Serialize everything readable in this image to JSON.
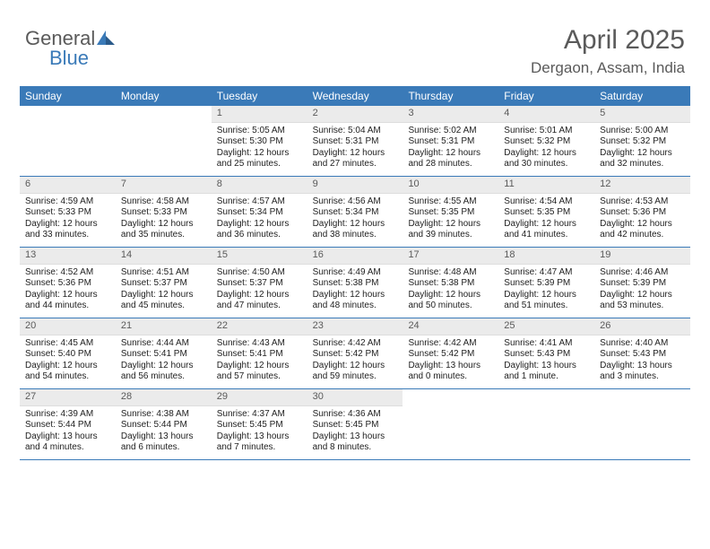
{
  "logo": {
    "text1": "General",
    "text2": "Blue"
  },
  "title": "April 2025",
  "location": "Dergaon, Assam, India",
  "colors": {
    "header_bg": "#3a7ab8",
    "header_text": "#ffffff",
    "daynum_bg": "#ebebeb",
    "daynum_text": "#5a5a5a",
    "border": "#3a7ab8",
    "body_text": "#222222",
    "page_bg": "#ffffff"
  },
  "day_headers": [
    "Sunday",
    "Monday",
    "Tuesday",
    "Wednesday",
    "Thursday",
    "Friday",
    "Saturday"
  ],
  "weeks": [
    [
      null,
      null,
      {
        "n": "1",
        "sr": "Sunrise: 5:05 AM",
        "ss": "Sunset: 5:30 PM",
        "dl1": "Daylight: 12 hours",
        "dl2": "and 25 minutes."
      },
      {
        "n": "2",
        "sr": "Sunrise: 5:04 AM",
        "ss": "Sunset: 5:31 PM",
        "dl1": "Daylight: 12 hours",
        "dl2": "and 27 minutes."
      },
      {
        "n": "3",
        "sr": "Sunrise: 5:02 AM",
        "ss": "Sunset: 5:31 PM",
        "dl1": "Daylight: 12 hours",
        "dl2": "and 28 minutes."
      },
      {
        "n": "4",
        "sr": "Sunrise: 5:01 AM",
        "ss": "Sunset: 5:32 PM",
        "dl1": "Daylight: 12 hours",
        "dl2": "and 30 minutes."
      },
      {
        "n": "5",
        "sr": "Sunrise: 5:00 AM",
        "ss": "Sunset: 5:32 PM",
        "dl1": "Daylight: 12 hours",
        "dl2": "and 32 minutes."
      }
    ],
    [
      {
        "n": "6",
        "sr": "Sunrise: 4:59 AM",
        "ss": "Sunset: 5:33 PM",
        "dl1": "Daylight: 12 hours",
        "dl2": "and 33 minutes."
      },
      {
        "n": "7",
        "sr": "Sunrise: 4:58 AM",
        "ss": "Sunset: 5:33 PM",
        "dl1": "Daylight: 12 hours",
        "dl2": "and 35 minutes."
      },
      {
        "n": "8",
        "sr": "Sunrise: 4:57 AM",
        "ss": "Sunset: 5:34 PM",
        "dl1": "Daylight: 12 hours",
        "dl2": "and 36 minutes."
      },
      {
        "n": "9",
        "sr": "Sunrise: 4:56 AM",
        "ss": "Sunset: 5:34 PM",
        "dl1": "Daylight: 12 hours",
        "dl2": "and 38 minutes."
      },
      {
        "n": "10",
        "sr": "Sunrise: 4:55 AM",
        "ss": "Sunset: 5:35 PM",
        "dl1": "Daylight: 12 hours",
        "dl2": "and 39 minutes."
      },
      {
        "n": "11",
        "sr": "Sunrise: 4:54 AM",
        "ss": "Sunset: 5:35 PM",
        "dl1": "Daylight: 12 hours",
        "dl2": "and 41 minutes."
      },
      {
        "n": "12",
        "sr": "Sunrise: 4:53 AM",
        "ss": "Sunset: 5:36 PM",
        "dl1": "Daylight: 12 hours",
        "dl2": "and 42 minutes."
      }
    ],
    [
      {
        "n": "13",
        "sr": "Sunrise: 4:52 AM",
        "ss": "Sunset: 5:36 PM",
        "dl1": "Daylight: 12 hours",
        "dl2": "and 44 minutes."
      },
      {
        "n": "14",
        "sr": "Sunrise: 4:51 AM",
        "ss": "Sunset: 5:37 PM",
        "dl1": "Daylight: 12 hours",
        "dl2": "and 45 minutes."
      },
      {
        "n": "15",
        "sr": "Sunrise: 4:50 AM",
        "ss": "Sunset: 5:37 PM",
        "dl1": "Daylight: 12 hours",
        "dl2": "and 47 minutes."
      },
      {
        "n": "16",
        "sr": "Sunrise: 4:49 AM",
        "ss": "Sunset: 5:38 PM",
        "dl1": "Daylight: 12 hours",
        "dl2": "and 48 minutes."
      },
      {
        "n": "17",
        "sr": "Sunrise: 4:48 AM",
        "ss": "Sunset: 5:38 PM",
        "dl1": "Daylight: 12 hours",
        "dl2": "and 50 minutes."
      },
      {
        "n": "18",
        "sr": "Sunrise: 4:47 AM",
        "ss": "Sunset: 5:39 PM",
        "dl1": "Daylight: 12 hours",
        "dl2": "and 51 minutes."
      },
      {
        "n": "19",
        "sr": "Sunrise: 4:46 AM",
        "ss": "Sunset: 5:39 PM",
        "dl1": "Daylight: 12 hours",
        "dl2": "and 53 minutes."
      }
    ],
    [
      {
        "n": "20",
        "sr": "Sunrise: 4:45 AM",
        "ss": "Sunset: 5:40 PM",
        "dl1": "Daylight: 12 hours",
        "dl2": "and 54 minutes."
      },
      {
        "n": "21",
        "sr": "Sunrise: 4:44 AM",
        "ss": "Sunset: 5:41 PM",
        "dl1": "Daylight: 12 hours",
        "dl2": "and 56 minutes."
      },
      {
        "n": "22",
        "sr": "Sunrise: 4:43 AM",
        "ss": "Sunset: 5:41 PM",
        "dl1": "Daylight: 12 hours",
        "dl2": "and 57 minutes."
      },
      {
        "n": "23",
        "sr": "Sunrise: 4:42 AM",
        "ss": "Sunset: 5:42 PM",
        "dl1": "Daylight: 12 hours",
        "dl2": "and 59 minutes."
      },
      {
        "n": "24",
        "sr": "Sunrise: 4:42 AM",
        "ss": "Sunset: 5:42 PM",
        "dl1": "Daylight: 13 hours",
        "dl2": "and 0 minutes."
      },
      {
        "n": "25",
        "sr": "Sunrise: 4:41 AM",
        "ss": "Sunset: 5:43 PM",
        "dl1": "Daylight: 13 hours",
        "dl2": "and 1 minute."
      },
      {
        "n": "26",
        "sr": "Sunrise: 4:40 AM",
        "ss": "Sunset: 5:43 PM",
        "dl1": "Daylight: 13 hours",
        "dl2": "and 3 minutes."
      }
    ],
    [
      {
        "n": "27",
        "sr": "Sunrise: 4:39 AM",
        "ss": "Sunset: 5:44 PM",
        "dl1": "Daylight: 13 hours",
        "dl2": "and 4 minutes."
      },
      {
        "n": "28",
        "sr": "Sunrise: 4:38 AM",
        "ss": "Sunset: 5:44 PM",
        "dl1": "Daylight: 13 hours",
        "dl2": "and 6 minutes."
      },
      {
        "n": "29",
        "sr": "Sunrise: 4:37 AM",
        "ss": "Sunset: 5:45 PM",
        "dl1": "Daylight: 13 hours",
        "dl2": "and 7 minutes."
      },
      {
        "n": "30",
        "sr": "Sunrise: 4:36 AM",
        "ss": "Sunset: 5:45 PM",
        "dl1": "Daylight: 13 hours",
        "dl2": "and 8 minutes."
      },
      null,
      null,
      null
    ]
  ]
}
